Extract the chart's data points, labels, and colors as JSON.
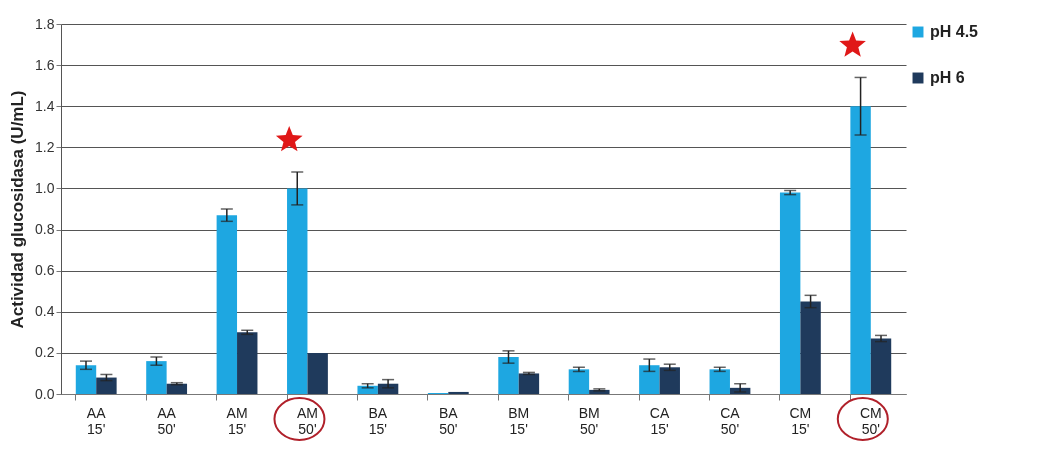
{
  "chart_data": {
    "type": "bar",
    "ylabel": "Actividad glucosidasa (U/mL)",
    "categories": [
      "AA 15'",
      "AA 50'",
      "AM 15'",
      "AM 50'",
      "BA 15'",
      "BA 50'",
      "BM 15'",
      "BM 50'",
      "CA 15'",
      "CA 50'",
      "CM 15'",
      "CM 50'"
    ],
    "series": [
      {
        "name": "pH 4.5",
        "color": "#1ea7e1",
        "values": [
          0.14,
          0.16,
          0.87,
          1.0,
          0.04,
          0.005,
          0.18,
          0.12,
          0.14,
          0.12,
          0.98,
          1.4
        ],
        "errors": [
          0.02,
          0.02,
          0.03,
          0.08,
          0.01,
          null,
          0.03,
          0.01,
          0.03,
          0.01,
          0.01,
          0.14
        ]
      },
      {
        "name": "pH 6",
        "color": "#1f3a5c",
        "values": [
          0.08,
          0.05,
          0.3,
          0.2,
          0.05,
          0.01,
          0.1,
          0.02,
          0.13,
          0.03,
          0.45,
          0.27
        ],
        "errors": [
          0.015,
          0.005,
          0.01,
          null,
          0.02,
          null,
          0.005,
          0.005,
          0.015,
          0.02,
          0.03,
          0.015
        ]
      }
    ],
    "ylim": [
      0,
      1.8
    ],
    "yticks": [
      {
        "value": 0,
        "label": "0.0"
      },
      0.2,
      0.4,
      0.6,
      0.8,
      {
        "value": 1,
        "label": "1.0"
      },
      1.2,
      1.4,
      1.6,
      1.8
    ],
    "grid": "y",
    "legend": "right"
  }
}
